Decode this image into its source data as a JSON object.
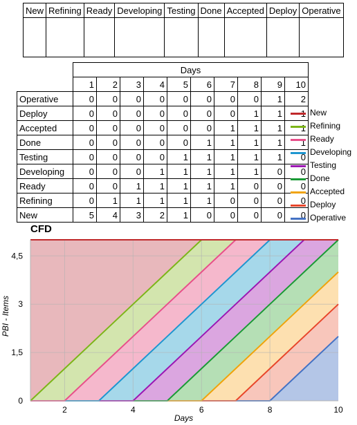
{
  "board": {
    "columns": [
      "New",
      "Refining",
      "Ready",
      "Developing",
      "Testing",
      "Done",
      "Accepted",
      "Deploy",
      "Operative"
    ]
  },
  "table": {
    "days_header": "Days",
    "days": [
      "1",
      "2",
      "3",
      "4",
      "5",
      "6",
      "7",
      "8",
      "9",
      "10"
    ],
    "rows": [
      {
        "label": "Operative",
        "values": [
          "0",
          "0",
          "0",
          "0",
          "0",
          "0",
          "0",
          "0",
          "1",
          "2"
        ]
      },
      {
        "label": "Deploy",
        "values": [
          "0",
          "0",
          "0",
          "0",
          "0",
          "0",
          "0",
          "1",
          "1",
          "1"
        ]
      },
      {
        "label": "Accepted",
        "values": [
          "0",
          "0",
          "0",
          "0",
          "0",
          "0",
          "1",
          "1",
          "1",
          "1"
        ]
      },
      {
        "label": "Done",
        "values": [
          "0",
          "0",
          "0",
          "0",
          "0",
          "1",
          "1",
          "1",
          "1",
          "1"
        ]
      },
      {
        "label": "Testing",
        "values": [
          "0",
          "0",
          "0",
          "0",
          "1",
          "1",
          "1",
          "1",
          "1",
          "0"
        ]
      },
      {
        "label": "Developing",
        "values": [
          "0",
          "0",
          "0",
          "1",
          "1",
          "1",
          "1",
          "1",
          "0",
          "0"
        ]
      },
      {
        "label": "Ready",
        "values": [
          "0",
          "0",
          "1",
          "1",
          "1",
          "1",
          "1",
          "0",
          "0",
          "0"
        ]
      },
      {
        "label": "Refining",
        "values": [
          "0",
          "1",
          "1",
          "1",
          "1",
          "1",
          "0",
          "0",
          "0",
          "0"
        ]
      },
      {
        "label": "New",
        "values": [
          "5",
          "4",
          "3",
          "2",
          "1",
          "0",
          "0",
          "0",
          "0",
          "0"
        ]
      }
    ]
  },
  "chart_data": {
    "type": "area",
    "stacked": true,
    "title": "CFD",
    "xlabel": "Days",
    "ylabel": "PBI - Items",
    "x": [
      1,
      2,
      3,
      4,
      5,
      6,
      7,
      8,
      9,
      10
    ],
    "xlim": [
      1,
      10
    ],
    "ylim": [
      0,
      5
    ],
    "xticks": [
      "2",
      "4",
      "6",
      "8",
      "10"
    ],
    "yticks": [
      "0",
      "1,5",
      "3",
      "4,5"
    ],
    "grid": true,
    "legend_position": "right",
    "series": [
      {
        "name": "Operative",
        "values": [
          0,
          0,
          0,
          0,
          0,
          0,
          0,
          0,
          1,
          2
        ],
        "color": "#4472c4",
        "fill": "#b4c6e7"
      },
      {
        "name": "Deploy",
        "values": [
          0,
          0,
          0,
          0,
          0,
          0,
          0,
          1,
          1,
          1
        ],
        "color": "#e8462a",
        "fill": "#f8c6bb"
      },
      {
        "name": "Accepted",
        "values": [
          0,
          0,
          0,
          0,
          0,
          0,
          1,
          1,
          1,
          1
        ],
        "color": "#f0a30a",
        "fill": "#fde0b0"
      },
      {
        "name": "Done",
        "values": [
          0,
          0,
          0,
          0,
          0,
          1,
          1,
          1,
          1,
          1
        ],
        "color": "#1a9a35",
        "fill": "#b5dfb5"
      },
      {
        "name": "Testing",
        "values": [
          0,
          0,
          0,
          0,
          1,
          1,
          1,
          1,
          1,
          0
        ],
        "color": "#9b17b3",
        "fill": "#dba6e0"
      },
      {
        "name": "Developing",
        "values": [
          0,
          0,
          0,
          1,
          1,
          1,
          1,
          1,
          0,
          0
        ],
        "color": "#1e96d0",
        "fill": "#a6d8ea"
      },
      {
        "name": "Ready",
        "values": [
          0,
          0,
          1,
          1,
          1,
          1,
          1,
          0,
          0,
          0
        ],
        "color": "#e84f8a",
        "fill": "#f5b8cc"
      },
      {
        "name": "Refining",
        "values": [
          0,
          1,
          1,
          1,
          1,
          1,
          0,
          0,
          0,
          0
        ],
        "color": "#7cb518",
        "fill": "#d3e5ae"
      },
      {
        "name": "New",
        "values": [
          5,
          4,
          3,
          2,
          1,
          0,
          0,
          0,
          0,
          0
        ],
        "color": "#c0282a",
        "fill": "#e8b8bc"
      }
    ]
  },
  "legend": [
    "New",
    "Refining",
    "Ready",
    "Developing",
    "Testing",
    "Done",
    "Accepted",
    "Deploy",
    "Operative"
  ]
}
